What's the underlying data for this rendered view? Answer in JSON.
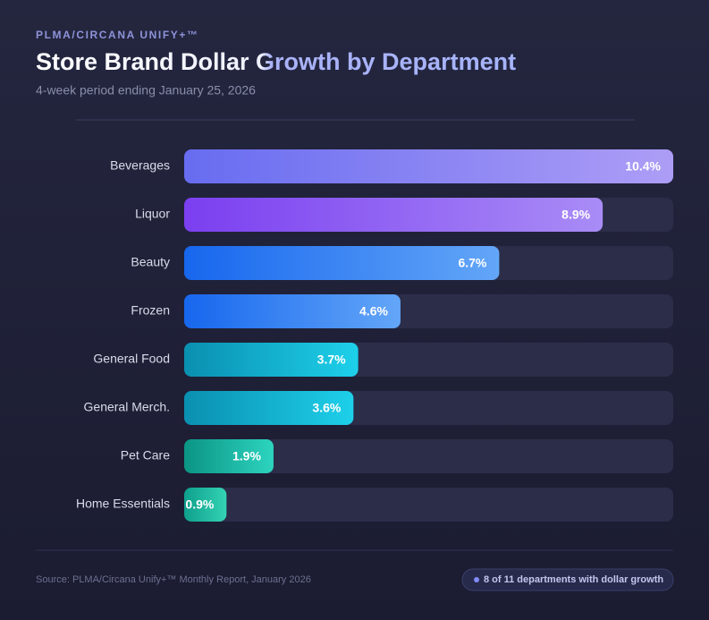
{
  "chart_data": {
    "type": "hbar",
    "eyebrow": "PLMA/CIRCANA UNIFY+™",
    "title": "Store Brand Dollar Growth by Department",
    "subtitle": "4-week period ending January 25, 2026",
    "categories": [
      "Beverages",
      "Liquor",
      "Beauty",
      "Frozen",
      "General Food",
      "General Merch.",
      "Pet Care",
      "Home Essentials"
    ],
    "values": [
      10.4,
      8.9,
      6.7,
      4.6,
      3.7,
      3.6,
      1.9,
      0.9
    ],
    "value_labels": [
      "10.4%",
      "8.9%",
      "6.7%",
      "4.6%",
      "3.7%",
      "3.6%",
      "1.9%",
      "0.9%"
    ],
    "colors": [
      [
        "#676cf0",
        "#ad9df6"
      ],
      [
        "#7b3ff0",
        "#a98cf6"
      ],
      [
        "#1767ee",
        "#63a6f8"
      ],
      [
        "#1767ee",
        "#63a6f8"
      ],
      [
        "#0a8fb0",
        "#1ed0ea"
      ],
      [
        "#0a8fb0",
        "#1ed0ea"
      ],
      [
        "#0b9484",
        "#2dd4bf"
      ],
      [
        "#0e9f8c",
        "#34d3b4"
      ]
    ],
    "source": "Source: PLMA/Circana Unify+™ Monthly Report, January 2026",
    "note": "8 of 11 departments with dollar growth"
  }
}
